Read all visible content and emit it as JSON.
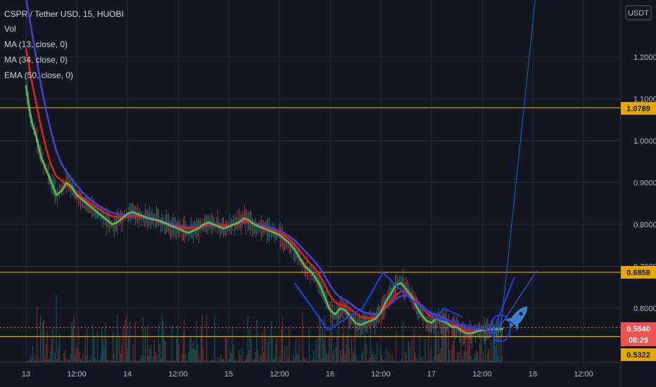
{
  "legend": {
    "symbol_line": "CSPR / Tether USD, 15, HUOBI",
    "vol_label": "Vol",
    "ma13_label": "MA (13, close, 0)",
    "ma34_label": "MA (34, close, 0)",
    "ema50_label": "EMA (50, close, 0)"
  },
  "price_axis": {
    "currency": "USDT",
    "ticks": [
      "1.2000",
      "1.1000",
      "1.0000",
      "0.9000",
      "0.8000",
      "0.7000",
      "0.6000"
    ]
  },
  "time_axis": {
    "ticks": [
      "13",
      "12:00",
      "14",
      "12:00",
      "15",
      "12:00",
      "16",
      "12:00",
      "17",
      "12:00",
      "18",
      "12:00"
    ]
  },
  "price_tags": {
    "level_high": "1.0789",
    "level_mid": "0.6858",
    "current_price": "0.5540",
    "countdown": "08:29",
    "level_low": "0.5322"
  },
  "colors": {
    "background": "#131722",
    "ma13": "#5cb85c",
    "ma34": "#e0211b",
    "ema50": "#4a3fc9",
    "level_line": "#e6a700",
    "current_price": "#f05350",
    "drawing": "#1e3fdc",
    "candle_up": "#26a69a",
    "candle_down": "#ef5350"
  },
  "chart_data": {
    "type": "line",
    "title": "CSPR / Tether USD, 15, HUOBI",
    "ylim": [
      0.515,
      1.34
    ],
    "grid": true,
    "horizontal_levels": [
      1.0789,
      0.6858,
      0.5322
    ],
    "current_price": 0.554,
    "x_ticks": [
      "13",
      "12:00",
      "14",
      "12:00",
      "15",
      "12:00",
      "16",
      "12:00",
      "17",
      "12:00",
      "18",
      "12:00"
    ],
    "series": [
      {
        "name": "MA (13, close, 0)",
        "x": [
          0,
          0.05,
          0.1,
          0.15,
          0.2,
          0.25,
          0.3,
          0.35,
          0.4,
          0.45,
          0.5,
          0.55,
          0.6,
          0.65,
          0.7,
          0.75,
          0.8,
          0.85,
          0.9,
          0.95,
          1.0,
          1.05,
          1.1,
          1.15,
          1.2,
          1.25,
          1.3,
          1.35,
          1.4,
          1.45,
          1.5,
          1.55,
          1.6,
          1.65,
          1.7,
          1.75,
          1.8,
          1.85,
          1.9,
          1.95,
          2.0,
          2.05,
          2.1,
          2.15,
          2.2,
          2.25,
          2.3,
          2.35,
          2.4,
          2.45,
          2.5,
          2.55,
          2.6,
          2.65,
          2.7,
          2.75,
          2.8,
          2.85,
          2.9,
          2.95,
          3.0,
          3.05,
          3.1,
          3.15,
          3.2,
          3.25,
          3.3,
          3.35,
          3.4,
          3.45,
          3.5,
          3.55,
          3.6,
          3.65,
          3.7,
          3.75,
          3.8,
          3.85,
          3.9,
          3.95,
          4.0,
          4.05,
          4.1,
          4.15,
          4.2,
          4.25,
          4.3,
          4.35,
          4.4,
          4.45,
          4.5,
          4.55,
          4.6,
          4.65,
          4.7
        ],
        "values": [
          1.13,
          1.05,
          1.01,
          0.96,
          0.93,
          0.9,
          0.87,
          0.88,
          0.9,
          0.89,
          0.87,
          0.86,
          0.85,
          0.84,
          0.83,
          0.82,
          0.81,
          0.8,
          0.805,
          0.815,
          0.825,
          0.83,
          0.825,
          0.82,
          0.815,
          0.812,
          0.81,
          0.805,
          0.8,
          0.795,
          0.79,
          0.785,
          0.78,
          0.785,
          0.79,
          0.8,
          0.805,
          0.8,
          0.795,
          0.79,
          0.795,
          0.8,
          0.805,
          0.815,
          0.81,
          0.8,
          0.795,
          0.79,
          0.785,
          0.78,
          0.775,
          0.765,
          0.755,
          0.74,
          0.72,
          0.7,
          0.69,
          0.675,
          0.655,
          0.625,
          0.595,
          0.585,
          0.6,
          0.595,
          0.58,
          0.565,
          0.56,
          0.565,
          0.57,
          0.575,
          0.59,
          0.615,
          0.635,
          0.655,
          0.66,
          0.645,
          0.63,
          0.605,
          0.585,
          0.57,
          0.565,
          0.575,
          0.57,
          0.565,
          0.555,
          0.555,
          0.545,
          0.54,
          0.54,
          0.545,
          0.548,
          0.548,
          0.55,
          0.55,
          0.551
        ]
      },
      {
        "name": "MA (34, close, 0)",
        "x": [
          0,
          0.05,
          0.1,
          0.15,
          0.2,
          0.25,
          0.3,
          0.35,
          0.4,
          0.45,
          0.5,
          0.55,
          0.6,
          0.65,
          0.7,
          0.75,
          0.8,
          0.85,
          0.9,
          0.95,
          1.0,
          1.05,
          1.1,
          1.15,
          1.2,
          1.25,
          1.3,
          1.35,
          1.4,
          1.45,
          1.5,
          1.55,
          1.6,
          1.65,
          1.7,
          1.75,
          1.8,
          1.85,
          1.9,
          1.95,
          2.0,
          2.05,
          2.1,
          2.15,
          2.2,
          2.25,
          2.3,
          2.35,
          2.4,
          2.45,
          2.5,
          2.55,
          2.6,
          2.65,
          2.7,
          2.75,
          2.8,
          2.85,
          2.9,
          2.95,
          3.0,
          3.05,
          3.1,
          3.15,
          3.2,
          3.25,
          3.3,
          3.35,
          3.4,
          3.45,
          3.5,
          3.55,
          3.6,
          3.65,
          3.7,
          3.75,
          3.8,
          3.85,
          3.9,
          3.95,
          4.0,
          4.05,
          4.1,
          4.15,
          4.2,
          4.25,
          4.3,
          4.35,
          4.4,
          4.45,
          4.5,
          4.55,
          4.6,
          4.65,
          4.7
        ],
        "values": [
          1.22,
          1.15,
          1.09,
          1.03,
          0.98,
          0.94,
          0.915,
          0.905,
          0.895,
          0.885,
          0.875,
          0.865,
          0.855,
          0.848,
          0.84,
          0.832,
          0.825,
          0.82,
          0.818,
          0.817,
          0.818,
          0.82,
          0.82,
          0.818,
          0.815,
          0.812,
          0.808,
          0.804,
          0.8,
          0.797,
          0.794,
          0.792,
          0.79,
          0.791,
          0.793,
          0.797,
          0.8,
          0.8,
          0.798,
          0.797,
          0.798,
          0.8,
          0.803,
          0.808,
          0.806,
          0.801,
          0.797,
          0.792,
          0.788,
          0.784,
          0.78,
          0.773,
          0.765,
          0.752,
          0.738,
          0.722,
          0.708,
          0.695,
          0.678,
          0.655,
          0.63,
          0.614,
          0.608,
          0.605,
          0.598,
          0.588,
          0.58,
          0.577,
          0.576,
          0.578,
          0.588,
          0.603,
          0.618,
          0.632,
          0.64,
          0.638,
          0.631,
          0.617,
          0.602,
          0.589,
          0.579,
          0.577,
          0.572,
          0.566,
          0.56,
          0.557,
          0.551,
          0.547,
          0.545,
          0.545,
          0.546,
          0.547,
          0.548,
          0.549,
          0.55
        ]
      },
      {
        "name": "EMA (50, close, 0)",
        "x": [
          0,
          0.05,
          0.1,
          0.15,
          0.2,
          0.25,
          0.3,
          0.35,
          0.4,
          0.45,
          0.5,
          0.55,
          0.6,
          0.65,
          0.7,
          0.75,
          0.8,
          0.85,
          0.9,
          0.95,
          1.0,
          1.05,
          1.1,
          1.15,
          1.2,
          1.25,
          1.3,
          1.35,
          1.4,
          1.45,
          1.5,
          1.55,
          1.6,
          1.65,
          1.7,
          1.75,
          1.8,
          1.85,
          1.9,
          1.95,
          2.0,
          2.05,
          2.1,
          2.15,
          2.2,
          2.25,
          2.3,
          2.35,
          2.4,
          2.45,
          2.5,
          2.55,
          2.6,
          2.65,
          2.7,
          2.75,
          2.8,
          2.85,
          2.9,
          2.95,
          3.0,
          3.05,
          3.1,
          3.15,
          3.2,
          3.25,
          3.3,
          3.35,
          3.4,
          3.45,
          3.5,
          3.55,
          3.6,
          3.65,
          3.7,
          3.75,
          3.8,
          3.85,
          3.9,
          3.95,
          4.0,
          4.05,
          4.1,
          4.15,
          4.2,
          4.25,
          4.3,
          4.35,
          4.4,
          4.45,
          4.5,
          4.55,
          4.6,
          4.65,
          4.7
        ],
        "values": [
          1.34,
          1.27,
          1.2,
          1.13,
          1.07,
          1.02,
          0.975,
          0.945,
          0.925,
          0.908,
          0.893,
          0.879,
          0.867,
          0.857,
          0.848,
          0.84,
          0.833,
          0.828,
          0.825,
          0.823,
          0.823,
          0.824,
          0.823,
          0.821,
          0.818,
          0.815,
          0.811,
          0.807,
          0.803,
          0.8,
          0.797,
          0.795,
          0.793,
          0.793,
          0.794,
          0.796,
          0.798,
          0.798,
          0.797,
          0.797,
          0.798,
          0.8,
          0.802,
          0.805,
          0.805,
          0.803,
          0.8,
          0.797,
          0.793,
          0.789,
          0.785,
          0.779,
          0.772,
          0.762,
          0.75,
          0.737,
          0.724,
          0.711,
          0.696,
          0.676,
          0.654,
          0.637,
          0.626,
          0.619,
          0.611,
          0.602,
          0.594,
          0.589,
          0.586,
          0.585,
          0.59,
          0.6,
          0.611,
          0.622,
          0.629,
          0.63,
          0.627,
          0.618,
          0.607,
          0.597,
          0.588,
          0.584,
          0.579,
          0.573,
          0.567,
          0.563,
          0.558,
          0.553,
          0.55,
          0.549,
          0.549,
          0.549,
          0.55,
          0.55,
          0.551
        ]
      }
    ]
  }
}
